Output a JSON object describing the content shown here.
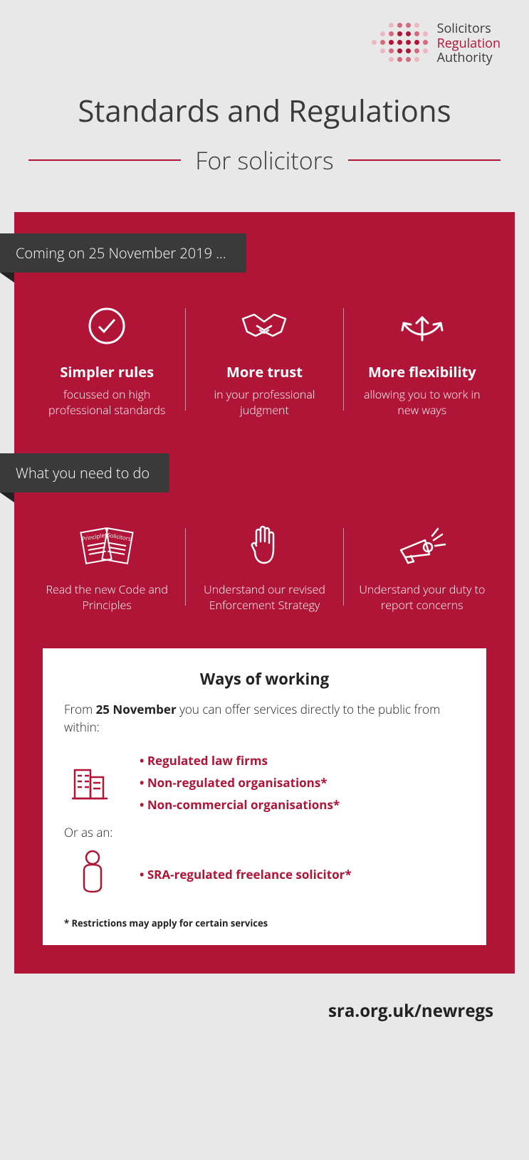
{
  "brand": {
    "line1": "Solicitors",
    "line2": "Regulation",
    "line3": "Authority",
    "dot_colors": {
      "dark": "#b01537",
      "mid": "#d46a7e",
      "light": "#e9b8c1",
      "empty": "transparent"
    }
  },
  "title": "Standards and Regulations",
  "subtitle": "For solicitors",
  "colors": {
    "accent": "#b01537",
    "tag_bg": "#3a3a3a",
    "page_bg": "#e8e8e8",
    "text_dark": "#3a3a3a"
  },
  "section1": {
    "tag": "Coming on 25 November 2019 ...",
    "items": [
      {
        "title": "Simpler rules",
        "body": "focussed on high professional standards"
      },
      {
        "title": "More trust",
        "body": "in your professional judgment"
      },
      {
        "title": "More flexibility",
        "body": "allowing you to work in new ways"
      }
    ]
  },
  "section2": {
    "tag": "What you need to do",
    "items": [
      {
        "body": "Read the new Code and Principles"
      },
      {
        "body": "Understand our revised Enforcement Strategy"
      },
      {
        "body": "Understand your duty to report concerns"
      }
    ]
  },
  "ways": {
    "title": "Ways of working",
    "intro_prefix": "From ",
    "intro_bold": "25 November",
    "intro_suffix": " you can offer services directly to the public from within:",
    "list1": [
      "Regulated law firms",
      "Non-regulated organisations*",
      "Non-commercial organisations*"
    ],
    "or": "Or as an:",
    "list2": [
      "SRA-regulated freelance solicitor*"
    ],
    "footnote": "* Restrictions may apply for certain services"
  },
  "footer": "sra.org.uk/newregs",
  "docs_icon": {
    "label1": "Principles",
    "label2": "Solicitors"
  }
}
